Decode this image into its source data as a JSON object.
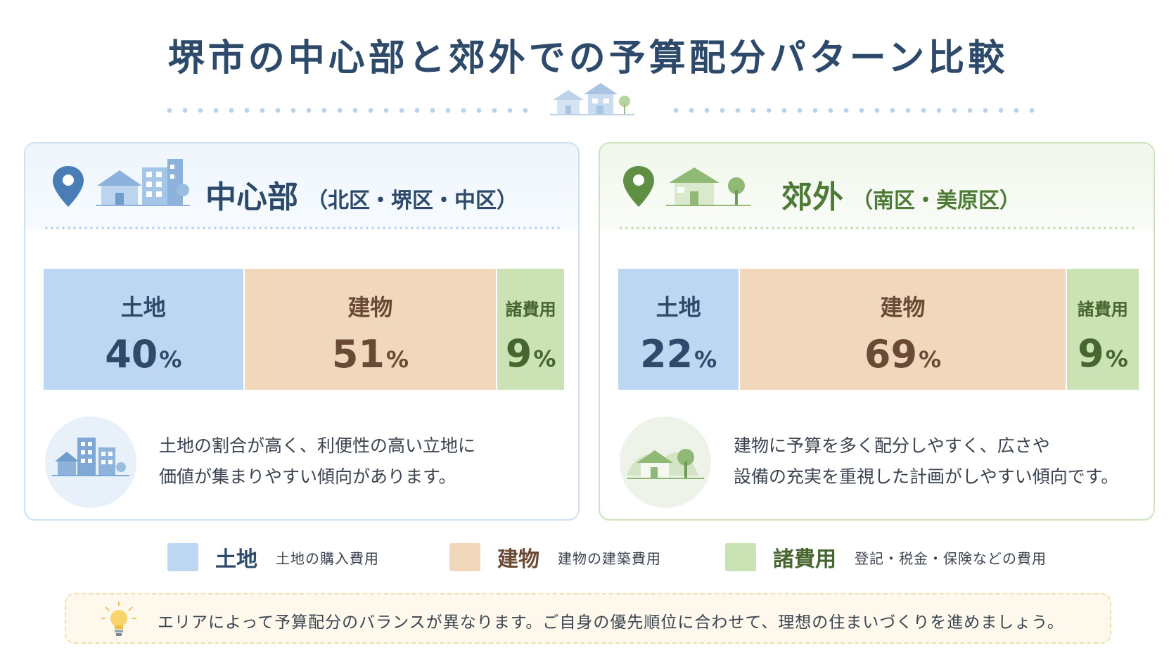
{
  "title": "堺市の中心部と郊外での予算配分パターン比較",
  "colors": {
    "land": "#bdd7f2",
    "building": "#f1d8bd",
    "fees": "#cbe3b4",
    "center_accent": "#4a7db5",
    "suburb_accent": "#5f8f45"
  },
  "cards": {
    "center": {
      "title": "中心部",
      "subtitle": "（北区・堺区・中区）",
      "icons": [
        "location-pin-icon",
        "city-buildings-icon"
      ],
      "segments": [
        {
          "label": "土地",
          "value": 40,
          "unit": "%"
        },
        {
          "label": "建物",
          "value": 51,
          "unit": "%"
        },
        {
          "label": "諸費用",
          "value": 9,
          "unit": "%"
        }
      ],
      "description_line1": "土地の割合が高く、利便性の高い立地に",
      "description_line2": "価値が集まりやすい傾向があります。"
    },
    "suburb": {
      "title": "郊外",
      "subtitle": "（南区・美原区）",
      "icons": [
        "location-pin-icon",
        "house-tree-icon"
      ],
      "segments": [
        {
          "label": "土地",
          "value": 22,
          "unit": "%"
        },
        {
          "label": "建物",
          "value": 69,
          "unit": "%"
        },
        {
          "label": "諸費用",
          "value": 9,
          "unit": "%"
        }
      ],
      "description_line1": "建物に予算を多く配分しやすく、広さや",
      "description_line2": "設備の充実を重視した計画がしやすい傾向です。"
    }
  },
  "legend": [
    {
      "name": "土地",
      "desc": "土地の購入費用"
    },
    {
      "name": "建物",
      "desc": "建物の建築費用"
    },
    {
      "name": "諸費用",
      "desc": "登記・税金・保険などの費用"
    }
  ],
  "note": {
    "icon": "lightbulb-icon",
    "text": "エリアによって予算配分のバランスが異なります。ご自身の優先順位に合わせて、理想の住まいづくりを進めましょう。"
  }
}
